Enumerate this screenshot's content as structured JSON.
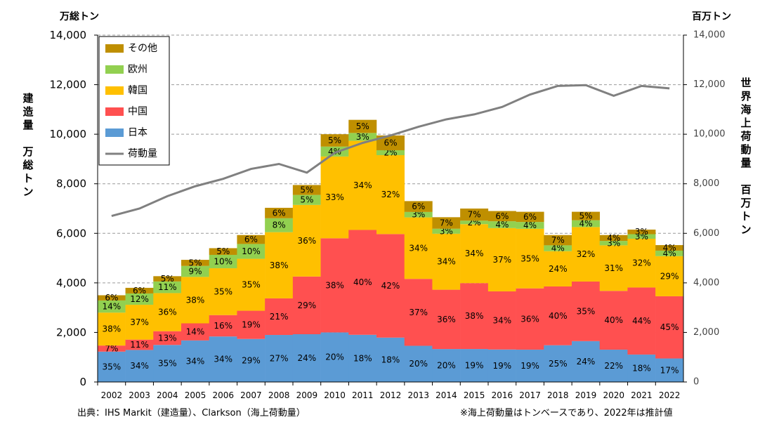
{
  "chart_data": {
    "type": "stacked-bar+line",
    "left_unit": "万総トン",
    "right_unit": "百万トン",
    "left_axis_label": "建造量　万総トン",
    "right_axis_label": "世界海上荷動量　百万トン",
    "ylim": [
      0,
      14000
    ],
    "y2lim": [
      0,
      14000
    ],
    "left_ticks": [
      "0",
      "2,000",
      "4,000",
      "6,000",
      "8,000",
      "10,000",
      "12,000",
      "14,000"
    ],
    "right_ticks": [
      "0",
      "2,000",
      "4,000",
      "6,000",
      "8,000",
      "10,000",
      "12,000",
      "14,000"
    ],
    "categories": [
      "2002",
      "2003",
      "2004",
      "2005",
      "2006",
      "2007",
      "2008",
      "2009",
      "2010",
      "2011",
      "2012",
      "2013",
      "2014",
      "2015",
      "2016",
      "2017",
      "2018",
      "2019",
      "2020",
      "2021",
      "2022"
    ],
    "totals": [
      3500,
      3800,
      4270,
      4930,
      5400,
      5990,
      7030,
      8030,
      10000,
      10580,
      9950,
      7300,
      6650,
      7000,
      6900,
      6870,
      5930,
      6870,
      5930,
      6150,
      5580
    ],
    "series": [
      {
        "name": "日本",
        "color": "#5b9bd5",
        "pct": [
          "35%",
          "34%",
          "35%",
          "34%",
          "34%",
          "29%",
          "27%",
          "24%",
          "20%",
          "18%",
          "18%",
          "20%",
          "20%",
          "19%",
          "19%",
          "19%",
          "25%",
          "24%",
          "22%",
          "18%",
          "17%"
        ]
      },
      {
        "name": "中国",
        "color": "#ff5050",
        "pct": [
          "7%",
          "11%",
          "13%",
          "14%",
          "16%",
          "19%",
          "21%",
          "29%",
          "38%",
          "40%",
          "42%",
          "37%",
          "36%",
          "38%",
          "34%",
          "36%",
          "40%",
          "35%",
          "40%",
          "44%",
          "45%"
        ]
      },
      {
        "name": "韓国",
        "color": "#ffc000",
        "pct": [
          "38%",
          "37%",
          "36%",
          "38%",
          "35%",
          "35%",
          "38%",
          "36%",
          "33%",
          "34%",
          "32%",
          "34%",
          "34%",
          "34%",
          "37%",
          "35%",
          "24%",
          "32%",
          "31%",
          "32%",
          "29%"
        ]
      },
      {
        "name": "欧州",
        "color": "#92d050",
        "pct": [
          "14%",
          "12%",
          "11%",
          "9%",
          "10%",
          "10%",
          "8%",
          "5%",
          "4%",
          "3%",
          "2%",
          "3%",
          "3%",
          "2%",
          "4%",
          "4%",
          "4%",
          "4%",
          "3%",
          "3%",
          "4%"
        ]
      },
      {
        "name": "その他",
        "color": "#bf8f00",
        "pct": [
          "6%",
          "6%",
          "5%",
          "5%",
          "5%",
          "6%",
          "6%",
          "5%",
          "5%",
          "5%",
          "6%",
          "6%",
          "7%",
          "7%",
          "6%",
          "6%",
          "7%",
          "5%",
          "4%",
          "3%",
          "4%"
        ]
      }
    ],
    "line": {
      "name": "荷動量",
      "color": "#808080",
      "values": [
        6700,
        7000,
        7500,
        7900,
        8200,
        8600,
        8800,
        8450,
        9250,
        9650,
        9950,
        10300,
        10600,
        10800,
        11100,
        11600,
        11950,
        11980,
        11550,
        11950,
        11850
      ]
    },
    "legend": [
      "その他",
      "欧州",
      "韓国",
      "中国",
      "日本",
      "荷動量"
    ],
    "legend_position": "top-left",
    "grid": true
  },
  "footer": {
    "source": "出典：IHS Markit（建造量）、Clarkson（海上荷動量）",
    "note": "※海上荷動量はトンベースであり、2022年は推計値"
  }
}
